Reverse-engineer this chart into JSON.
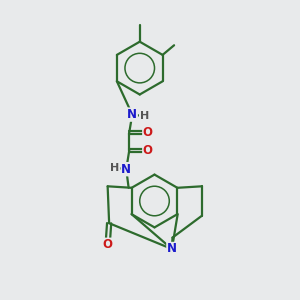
{
  "bg_color": "#e8eaeb",
  "bond_color": "#2d6b2d",
  "N_color": "#1a1acc",
  "O_color": "#cc1a1a",
  "H_color": "#555555",
  "line_width": 1.6,
  "font_size_atom": 8.5,
  "xlim": [
    0,
    10
  ],
  "ylim": [
    0,
    10
  ]
}
